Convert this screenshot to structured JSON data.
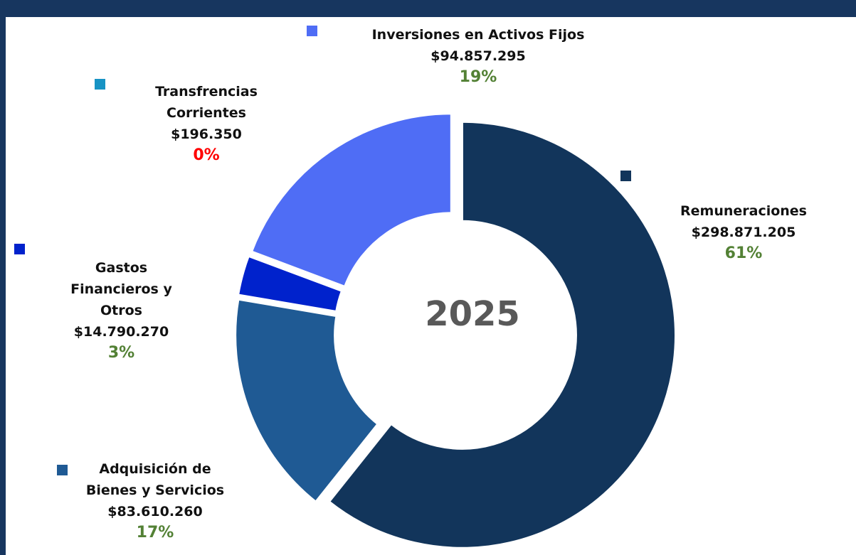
{
  "chart_data": {
    "type": "donut",
    "center_label": "2025",
    "categories": [
      "Remuneraciones",
      "Adquisición de Bienes y Servicios",
      "Gastos Financieros y Otros",
      "Transfrencias Corrientes",
      "Inversiones en Activos Fijos"
    ],
    "values": [
      298871205,
      83610260,
      14790270,
      196350,
      94857295
    ],
    "value_labels": [
      "$298.871.205",
      "$83.610.260",
      "$14.790.270",
      "$196.350",
      "$94.857.295"
    ],
    "percent_values": [
      61,
      17,
      3,
      0,
      19
    ],
    "percent_labels": [
      "61%",
      "17%",
      "3%",
      "0%",
      "19%"
    ],
    "colors": [
      "#12355b",
      "#1f5a94",
      "#0022cc",
      "#1793c4",
      "#4f6df5"
    ],
    "percent_colors": [
      "#538135",
      "#538135",
      "#538135",
      "#ff0000",
      "#538135"
    ]
  }
}
